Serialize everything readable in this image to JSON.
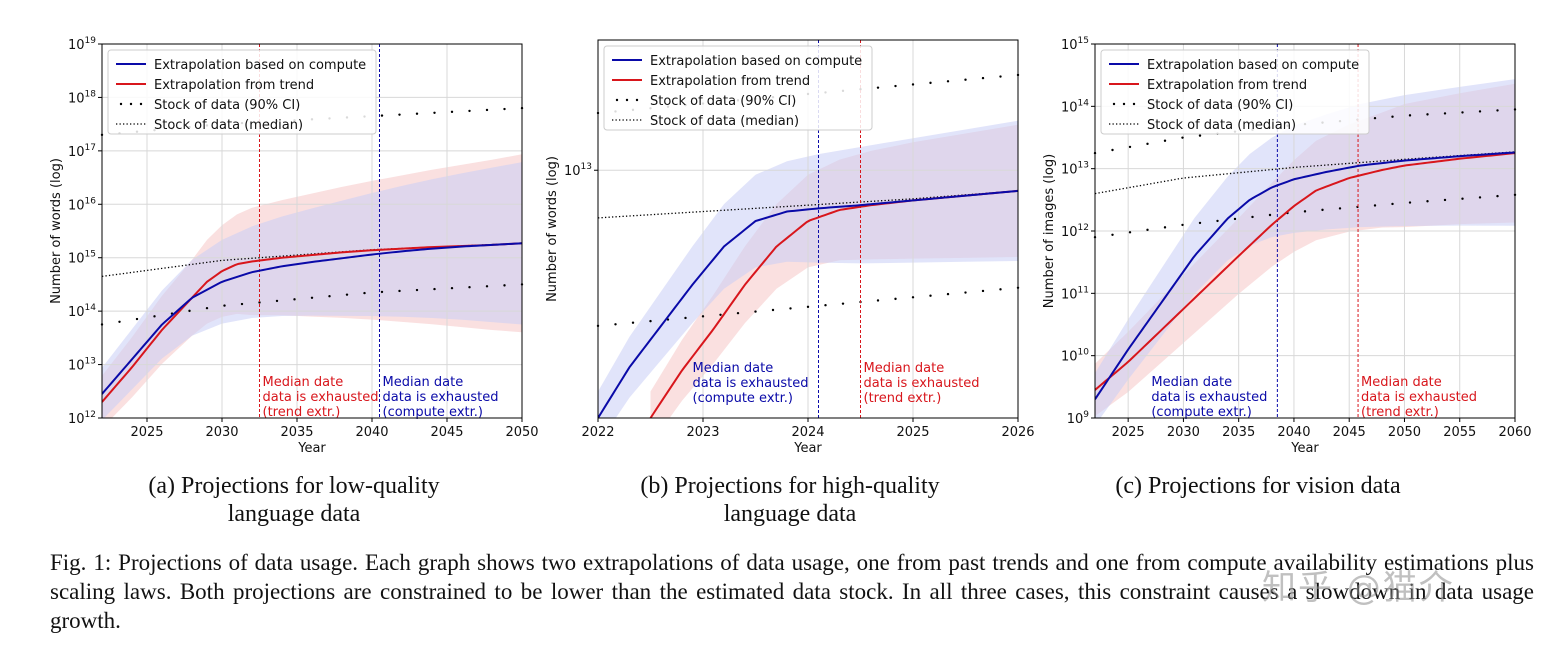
{
  "chart_data": [
    {
      "type": "line",
      "xlabel": "Year",
      "ylabel": "Number of words (log)",
      "xlim": [
        2022,
        2050
      ],
      "ylim_log10": [
        12,
        19
      ],
      "scale": "log",
      "xticks": [
        2025,
        2030,
        2035,
        2040,
        2045,
        2050
      ],
      "xtick_labels": [
        "2025",
        "2030",
        "2035",
        "2040",
        "2045",
        "2050"
      ],
      "ytick_labels": [
        {
          "base": "10",
          "exp": "12"
        },
        {
          "base": "10",
          "exp": "13"
        },
        {
          "base": "10",
          "exp": "14"
        },
        {
          "base": "10",
          "exp": "15"
        },
        {
          "base": "10",
          "exp": "16"
        },
        {
          "base": "10",
          "exp": "17"
        },
        {
          "base": "10",
          "exp": "18"
        },
        {
          "base": "10",
          "exp": "19"
        }
      ],
      "grid": true,
      "legend_position": "top-left",
      "legend": [
        "Extrapolation based on compute",
        "Extrapolation from trend",
        "Stock of data (90% CI)",
        "Stock of data (median)"
      ],
      "series": [
        {
          "name": "Extrapolation based on compute",
          "color": "#0a0aa8",
          "x": [
            2022,
            2024,
            2026,
            2028,
            2030,
            2032,
            2034,
            2036,
            2038,
            2040,
            2042,
            2044,
            2046,
            2048,
            2050
          ],
          "y_log10": [
            12.45,
            13.1,
            13.75,
            14.25,
            14.55,
            14.73,
            14.84,
            14.92,
            14.99,
            15.06,
            15.12,
            15.17,
            15.21,
            15.24,
            15.27
          ]
        },
        {
          "name": "Extrapolation from trend",
          "color": "#d8161c",
          "x": [
            2022,
            2024,
            2026,
            2028,
            2029,
            2030,
            2031,
            2032,
            2034,
            2036,
            2038,
            2040,
            2042,
            2044,
            2046,
            2048,
            2050
          ],
          "y_log10": [
            12.3,
            12.95,
            13.65,
            14.25,
            14.55,
            14.75,
            14.88,
            14.93,
            15.0,
            15.05,
            15.1,
            15.14,
            15.17,
            15.2,
            15.22,
            15.24,
            15.27
          ]
        },
        {
          "name": "Stock of data (median)",
          "x": [
            2022,
            2030,
            2040,
            2050
          ],
          "y_log10": [
            14.65,
            14.95,
            15.15,
            15.27
          ]
        },
        {
          "name": "Stock of data (90% CI) lower",
          "x": [
            2022,
            2030,
            2040,
            2050
          ],
          "y_log10": [
            13.75,
            14.1,
            14.35,
            14.5
          ]
        },
        {
          "name": "Stock of data (90% CI) upper",
          "x": [
            2022,
            2030,
            2040,
            2050
          ],
          "y_log10": [
            17.3,
            17.5,
            17.65,
            17.8
          ]
        }
      ],
      "vlines": [
        {
          "x": 2032.5,
          "color": "#d8161c",
          "label": [
            "Median date",
            "data is exhausted",
            "(trend extr.)"
          ],
          "label_side": "right"
        },
        {
          "x": 2040.5,
          "color": "#0a0aa8",
          "label": [
            "Median date",
            "data is exhausted",
            "(compute extr.)"
          ],
          "label_side": "right"
        }
      ],
      "caption": [
        "(a) Projections for low-quality",
        "language data"
      ]
    },
    {
      "type": "line",
      "xlabel": "Year",
      "ylabel": "Number of words (log)",
      "xlim": [
        2022,
        2026
      ],
      "ylim_log10": [
        12.22,
        13.41
      ],
      "scale": "log",
      "xticks": [
        2022,
        2023,
        2024,
        2025,
        2026
      ],
      "xtick_labels": [
        "2022",
        "2023",
        "2024",
        "2025",
        "2026"
      ],
      "ytick_labels": [
        {
          "base": "10",
          "exp": "13",
          "value": 13
        }
      ],
      "grid": true,
      "legend_position": "top-left",
      "legend": [
        "Extrapolation based on compute",
        "Extrapolation from trend",
        "Stock of data (90% CI)",
        "Stock of data (median)"
      ],
      "series": [
        {
          "name": "Extrapolation based on compute",
          "color": "#0a0aa8",
          "x": [
            2022,
            2022.3,
            2022.6,
            2022.9,
            2023.2,
            2023.5,
            2023.8,
            2024.1,
            2024.5,
            2025,
            2025.5,
            2026
          ],
          "y_log10": [
            12.22,
            12.38,
            12.51,
            12.64,
            12.76,
            12.84,
            12.87,
            12.88,
            12.89,
            12.905,
            12.92,
            12.935
          ]
        },
        {
          "name": "Extrapolation from trend",
          "color": "#d8161c",
          "x": [
            2022.5,
            2022.8,
            2023.1,
            2023.4,
            2023.7,
            2024,
            2024.3,
            2024.6,
            2025,
            2025.5,
            2026
          ],
          "y_log10": [
            12.22,
            12.37,
            12.5,
            12.64,
            12.76,
            12.84,
            12.875,
            12.89,
            12.905,
            12.92,
            12.935
          ]
        },
        {
          "name": "Stock of data (median)",
          "x": [
            2022,
            2023,
            2024,
            2025,
            2026
          ],
          "y_log10": [
            12.85,
            12.87,
            12.89,
            12.91,
            12.935
          ]
        },
        {
          "name": "Stock of data (90% CI) lower",
          "x": [
            2022,
            2023,
            2024,
            2025,
            2026
          ],
          "y_log10": [
            12.51,
            12.54,
            12.57,
            12.6,
            12.63
          ]
        },
        {
          "name": "Stock of data (90% CI) upper",
          "x": [
            2022,
            2023,
            2024,
            2025,
            2026
          ],
          "y_log10": [
            13.18,
            13.21,
            13.24,
            13.27,
            13.3
          ]
        }
      ],
      "vlines": [
        {
          "x": 2024.1,
          "color": "#0a0aa8",
          "label": [
            "Median date",
            "data is exhausted",
            "(compute extr.)"
          ],
          "label_side": "left"
        },
        {
          "x": 2024.5,
          "color": "#d8161c",
          "label": [
            "Median date",
            "data is exhausted",
            "(trend extr.)"
          ],
          "label_side": "right"
        }
      ],
      "caption": [
        "(b) Projections for high-quality",
        "language data"
      ]
    },
    {
      "type": "line",
      "xlabel": "Year",
      "ylabel": "Number of images (log)",
      "xlim": [
        2022,
        2060
      ],
      "ylim_log10": [
        9,
        15
      ],
      "scale": "log",
      "xticks": [
        2025,
        2030,
        2035,
        2040,
        2045,
        2050,
        2055,
        2060
      ],
      "xtick_labels": [
        "2025",
        "2030",
        "2035",
        "2040",
        "2045",
        "2050",
        "2055",
        "2060"
      ],
      "ytick_labels": [
        {
          "base": "10",
          "exp": "9"
        },
        {
          "base": "10",
          "exp": "10"
        },
        {
          "base": "10",
          "exp": "11"
        },
        {
          "base": "10",
          "exp": "12"
        },
        {
          "base": "10",
          "exp": "13"
        },
        {
          "base": "10",
          "exp": "14"
        },
        {
          "base": "10",
          "exp": "15"
        }
      ],
      "grid": true,
      "legend_position": "top-left",
      "legend": [
        "Extrapolation based on compute",
        "Extrapolation from trend",
        "Stock of data (90% CI)",
        "Stock of data (median)"
      ],
      "series": [
        {
          "name": "Extrapolation based on compute",
          "color": "#0a0aa8",
          "x": [
            2022,
            2025,
            2028,
            2031,
            2034,
            2036,
            2038,
            2040,
            2043,
            2046,
            2050,
            2055,
            2060
          ],
          "y_log10": [
            9.3,
            10.1,
            10.85,
            11.6,
            12.2,
            12.5,
            12.7,
            12.83,
            12.95,
            13.05,
            13.13,
            13.2,
            13.26
          ]
        },
        {
          "name": "Extrapolation from trend",
          "color": "#d8161c",
          "x": [
            2022,
            2025,
            2030,
            2035,
            2038,
            2040,
            2042,
            2045,
            2048,
            2050,
            2055,
            2060
          ],
          "y_log10": [
            9.45,
            9.9,
            10.75,
            11.6,
            12.1,
            12.4,
            12.65,
            12.85,
            12.98,
            13.05,
            13.16,
            13.25
          ]
        },
        {
          "name": "Stock of data (median)",
          "x": [
            2022,
            2030,
            2040,
            2050,
            2060
          ],
          "y_log10": [
            12.6,
            12.85,
            13.02,
            13.15,
            13.27
          ]
        },
        {
          "name": "Stock of data (90% CI) lower",
          "x": [
            2022,
            2030,
            2040,
            2050,
            2060
          ],
          "y_log10": [
            11.9,
            12.1,
            12.3,
            12.45,
            12.58
          ]
        },
        {
          "name": "Stock of data (90% CI) upper",
          "x": [
            2022,
            2030,
            2040,
            2050,
            2060
          ],
          "y_log10": [
            13.25,
            13.5,
            13.7,
            13.85,
            13.95
          ]
        }
      ],
      "vlines": [
        {
          "x": 2038.5,
          "color": "#0a0aa8",
          "label": [
            "Median date",
            "data is exhausted",
            "(compute extr.)"
          ],
          "label_side": "left"
        },
        {
          "x": 2045.8,
          "color": "#d8161c",
          "label": [
            "Median date",
            "data is exhausted",
            "(trend extr.)"
          ],
          "label_side": "right"
        }
      ],
      "caption": [
        "(c) Projections for vision data"
      ]
    }
  ],
  "figure_caption": "Fig. 1: Projections of data usage. Each graph shows two extrapolations of data usage, one from past trends and one from compute availability estimations plus scaling laws. Both projections are constrained to be lower than the estimated data stock. In all three cases, this constraint causes a slowdown in data usage growth.",
  "watermark": "知乎 @猫介",
  "colors": {
    "compute": "#0a0aa8",
    "trend": "#d8161c",
    "band_compute": "#c8cdf5",
    "band_trend": "#f7cccc",
    "grid": "#d8d8d8"
  }
}
